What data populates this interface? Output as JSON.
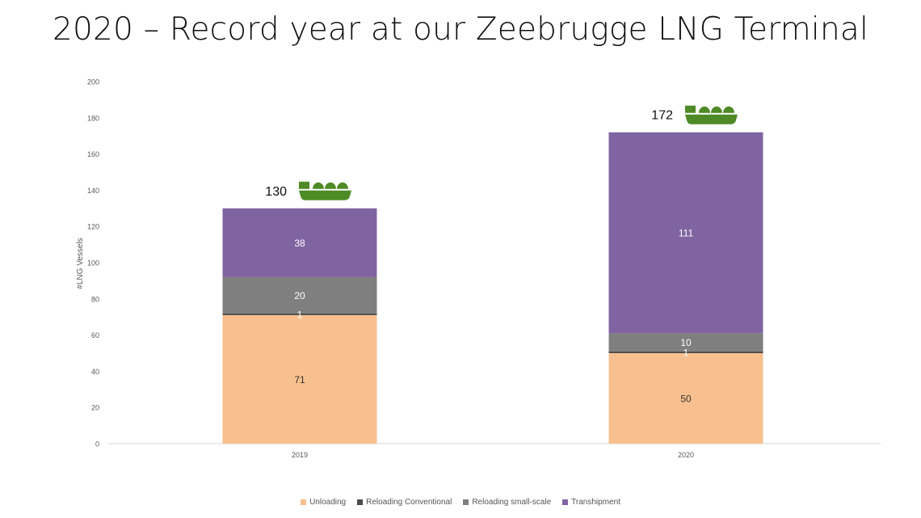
{
  "title": "2020 – Record year at our Zeebrugge LNG Terminal",
  "chart_data": {
    "type": "bar",
    "stacked": true,
    "categories": [
      "2019",
      "2020"
    ],
    "ylabel": "#LNG Vessels",
    "xlabel": "",
    "ylim": [
      0,
      200
    ],
    "yticks": [
      0,
      20,
      40,
      60,
      80,
      100,
      120,
      140,
      160,
      180,
      200
    ],
    "grid": false,
    "legend_position": "bottom",
    "series": [
      {
        "name": "Unloading",
        "values": [
          71,
          50
        ],
        "color": "#F8C08F",
        "label_color": "#333333"
      },
      {
        "name": "Reloading Conventional",
        "values": [
          1,
          1
        ],
        "color": "#4D4D4D",
        "label_color": "#ffffff"
      },
      {
        "name": "Reloading small-scale",
        "values": [
          20,
          10
        ],
        "color": "#7F7F7F",
        "label_color": "#ffffff"
      },
      {
        "name": "Transhipment",
        "values": [
          38,
          111
        ],
        "color": "#8064A2",
        "label_color": "#ffffff"
      }
    ],
    "totals": [
      "130",
      "172"
    ],
    "total_icon": "lng-ship-icon",
    "icon_color": "#4E8A26"
  }
}
